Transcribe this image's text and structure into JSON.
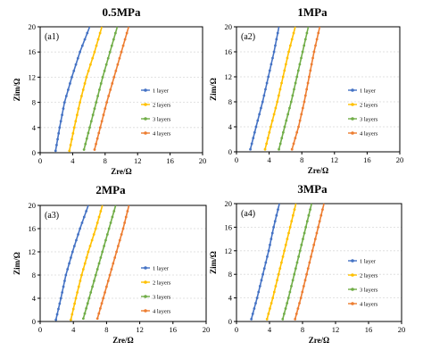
{
  "colors": {
    "1 layer": "#4472c4",
    "2 layers": "#ffc000",
    "3 layers": "#70ad47",
    "4 layers": "#ed7d31"
  },
  "chart_data": [
    {
      "type": "line",
      "id": "(a1)",
      "title": "0.5MPa",
      "xlabel": "Zre/Ω",
      "ylabel": "Zim/Ω",
      "xlim": [
        0,
        20
      ],
      "ylim": [
        0,
        20
      ],
      "xticks": [
        0,
        4,
        8,
        12,
        16,
        20
      ],
      "yticks": [
        0,
        4,
        8,
        12,
        16,
        20
      ],
      "grid": true,
      "legend_position": "right-middle",
      "series": [
        {
          "name": "1 layer",
          "x": [
            1.9,
            2.4,
            3.0,
            3.9,
            4.9,
            6.1
          ],
          "y": [
            0.3,
            4,
            8,
            12,
            16,
            20
          ]
        },
        {
          "name": "2 layers",
          "x": [
            3.6,
            4.2,
            4.9,
            5.7,
            6.7,
            7.6
          ],
          "y": [
            0.3,
            4,
            8,
            12,
            16,
            20
          ]
        },
        {
          "name": "3 layers",
          "x": [
            5.4,
            6.1,
            6.9,
            7.7,
            8.6,
            9.5
          ],
          "y": [
            0.5,
            4,
            8,
            12,
            16,
            20
          ]
        },
        {
          "name": "4 layers",
          "x": [
            6.7,
            7.4,
            8.2,
            9.1,
            10.0,
            10.9
          ],
          "y": [
            0.5,
            4,
            8,
            12,
            16,
            20
          ]
        }
      ]
    },
    {
      "type": "line",
      "id": "(a2)",
      "title": "1MPa",
      "xlabel": "Zre/Ω",
      "ylabel": "Zim/Ω",
      "xlim": [
        0,
        20
      ],
      "ylim": [
        0,
        20
      ],
      "xticks": [
        0,
        4,
        8,
        12,
        16,
        20
      ],
      "yticks": [
        0,
        4,
        8,
        12,
        16,
        20
      ],
      "grid": true,
      "legend_position": "right-middle",
      "series": [
        {
          "name": "1 layer",
          "x": [
            1.7,
            2.4,
            3.2,
            3.9,
            4.6,
            5.2
          ],
          "y": [
            0.4,
            4,
            8,
            12,
            16,
            20
          ]
        },
        {
          "name": "2 layers",
          "x": [
            3.5,
            4.2,
            5.0,
            5.7,
            6.4,
            7.2
          ],
          "y": [
            0.4,
            4,
            8,
            12,
            16,
            20
          ]
        },
        {
          "name": "3 layers",
          "x": [
            5.2,
            5.9,
            6.7,
            7.4,
            8.1,
            8.8
          ],
          "y": [
            0.4,
            4,
            8,
            12,
            16,
            20
          ]
        },
        {
          "name": "4 layers",
          "x": [
            6.8,
            7.6,
            8.3,
            8.9,
            9.5,
            10.2
          ],
          "y": [
            0.4,
            4,
            8,
            12,
            16,
            20
          ]
        }
      ]
    },
    {
      "type": "line",
      "id": "(a3)",
      "title": "2MPa",
      "xlabel": "Zre/Ω",
      "ylabel": "Zim/Ω",
      "xlim": [
        0,
        20
      ],
      "ylim": [
        0,
        20
      ],
      "xticks": [
        0,
        4,
        8,
        12,
        16,
        20
      ],
      "yticks": [
        0,
        4,
        8,
        12,
        16,
        20
      ],
      "grid": true,
      "legend_position": "right-middle",
      "series": [
        {
          "name": "1 layer",
          "x": [
            1.9,
            2.5,
            3.1,
            3.9,
            4.8,
            5.8
          ],
          "y": [
            0.3,
            4,
            8,
            12,
            16,
            20
          ]
        },
        {
          "name": "2 layers",
          "x": [
            3.7,
            4.3,
            5.0,
            5.8,
            6.7,
            7.5
          ],
          "y": [
            0.3,
            4,
            8,
            12,
            16,
            20
          ]
        },
        {
          "name": "3 layers",
          "x": [
            5.2,
            5.9,
            6.7,
            7.5,
            8.3,
            9.1
          ],
          "y": [
            0.5,
            4,
            8,
            12,
            16,
            20
          ]
        },
        {
          "name": "4 layers",
          "x": [
            6.9,
            7.6,
            8.4,
            9.2,
            10.0,
            10.7
          ],
          "y": [
            0.5,
            4,
            8,
            12,
            16,
            20
          ]
        }
      ]
    },
    {
      "type": "line",
      "id": "(a4)",
      "title": "3MPa",
      "xlabel": "Zre/Ω",
      "ylabel": "Zim/Ω",
      "xlim": [
        0,
        20
      ],
      "ylim": [
        0,
        20
      ],
      "xticks": [
        0,
        4,
        8,
        12,
        16,
        20
      ],
      "yticks": [
        0,
        4,
        8,
        12,
        16,
        20
      ],
      "grid": true,
      "legend_position": "right-middle",
      "series": [
        {
          "name": "1 layer",
          "x": [
            1.8,
            2.5,
            3.2,
            3.9,
            4.5,
            5.2
          ],
          "y": [
            0.4,
            4,
            8,
            12,
            16,
            20
          ]
        },
        {
          "name": "2 layers",
          "x": [
            3.7,
            4.4,
            5.1,
            5.8,
            6.5,
            7.2
          ],
          "y": [
            0.4,
            4,
            8,
            12,
            16,
            20
          ]
        },
        {
          "name": "3 layers",
          "x": [
            5.6,
            6.3,
            7.0,
            7.7,
            8.4,
            9.1
          ],
          "y": [
            0.4,
            4,
            8,
            12,
            16,
            20
          ]
        },
        {
          "name": "4 layers",
          "x": [
            7.1,
            7.8,
            8.5,
            9.2,
            9.9,
            10.6
          ],
          "y": [
            0.4,
            4,
            8,
            12,
            16,
            20
          ]
        }
      ]
    }
  ]
}
